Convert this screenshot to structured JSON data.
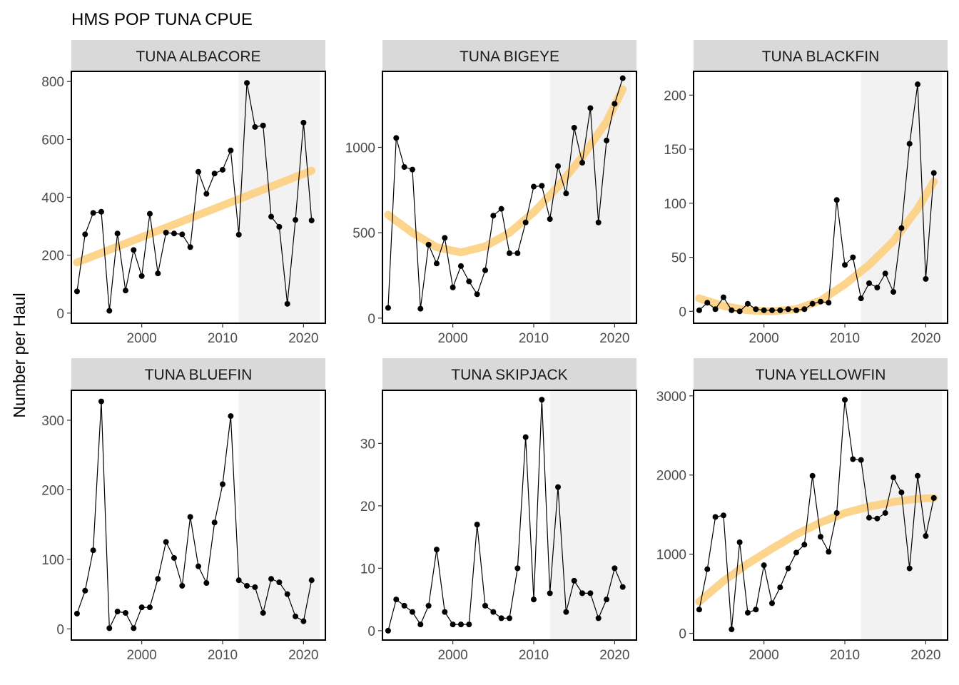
{
  "title": "HMS POP TUNA CPUE",
  "ylabel": "Number per Haul",
  "chart_data": {
    "type": "line",
    "title": "HMS POP TUNA CPUE",
    "ylabel": "Number per Haul",
    "xlabel": "",
    "xlim": [
      1991.3,
      2022.7
    ],
    "x_ticks": [
      2000,
      2010,
      2020
    ],
    "x_tick_labels": [
      "2000",
      "2010",
      "2020"
    ],
    "shaded_region": [
      2012,
      2022
    ],
    "colors": {
      "line": "#000000",
      "point": "#000000",
      "trend": "#fdd081",
      "shade": "#f2f2f2",
      "strip": "#d9d9d9"
    },
    "x": [
      1992,
      1993,
      1994,
      1995,
      1996,
      1997,
      1998,
      1999,
      2000,
      2001,
      2002,
      2003,
      2004,
      2005,
      2006,
      2007,
      2008,
      2009,
      2010,
      2011,
      2012,
      2013,
      2014,
      2015,
      2016,
      2017,
      2018,
      2019,
      2020,
      2021
    ],
    "panels": [
      {
        "name": "TUNA ALBACORE",
        "ylim": [
          -35,
          835
        ],
        "y_ticks": [
          0,
          200,
          400,
          600,
          800
        ],
        "y_tick_labels": [
          "0",
          "200",
          "400",
          "600",
          "800"
        ],
        "values": [
          75,
          272,
          346,
          350,
          8,
          275,
          78,
          218,
          128,
          343,
          137,
          278,
          275,
          272,
          228,
          488,
          412,
          482,
          495,
          562,
          271,
          795,
          643,
          648,
          333,
          298,
          32,
          322,
          658,
          320
        ],
        "trend": {
          "x": [
            1992,
            2021
          ],
          "y": [
            175,
            492
          ]
        }
      },
      {
        "name": "TUNA BIGEYE",
        "ylim": [
          -30,
          1445
        ],
        "y_ticks": [
          0,
          500,
          1000
        ],
        "y_tick_labels": [
          "0",
          "500",
          "1000"
        ],
        "values": [
          60,
          1055,
          885,
          870,
          55,
          430,
          320,
          470,
          180,
          305,
          215,
          140,
          280,
          600,
          640,
          380,
          380,
          560,
          770,
          775,
          580,
          890,
          730,
          1115,
          910,
          1230,
          560,
          1040,
          1255,
          1405
        ],
        "trend": {
          "x": [
            1992,
            1995,
            1998,
            2001,
            2004,
            2007,
            2010,
            2013,
            2016,
            2019,
            2021
          ],
          "y": [
            605,
            500,
            415,
            385,
            420,
            500,
            620,
            770,
            945,
            1150,
            1340
          ]
        }
      },
      {
        "name": "TUNA BLACKFIN",
        "ylim": [
          -11,
          222
        ],
        "y_ticks": [
          0,
          50,
          100,
          150,
          200
        ],
        "y_tick_labels": [
          "0",
          "50",
          "100",
          "150",
          "200"
        ],
        "values": [
          1,
          8,
          2,
          13,
          1,
          0,
          7,
          2,
          1,
          1,
          1,
          2,
          1,
          2,
          7,
          9,
          8,
          103,
          43,
          50,
          12,
          26,
          22,
          35,
          18,
          77,
          155,
          210,
          30,
          128
        ],
        "trend": {
          "x": [
            1992,
            1995,
            1998,
            2001,
            2004,
            2007,
            2010,
            2013,
            2016,
            2019,
            2021
          ],
          "y": [
            12,
            5,
            1,
            0,
            2,
            10,
            25,
            43,
            65,
            95,
            120
          ]
        }
      },
      {
        "name": "TUNA BLUEFIN",
        "ylim": [
          -16,
          343
        ],
        "y_ticks": [
          0,
          100,
          200,
          300
        ],
        "y_tick_labels": [
          "0",
          "100",
          "200",
          "300"
        ],
        "values": [
          22,
          55,
          113,
          327,
          1,
          25,
          23,
          1,
          31,
          31,
          72,
          125,
          102,
          62,
          161,
          90,
          66,
          153,
          208,
          306,
          70,
          62,
          60,
          23,
          72,
          67,
          50,
          18,
          11,
          70
        ]
      },
      {
        "name": "TUNA SKIPJACK",
        "ylim": [
          -1.5,
          38.5
        ],
        "y_ticks": [
          0,
          10,
          20,
          30
        ],
        "y_tick_labels": [
          "0",
          "10",
          "20",
          "30"
        ],
        "values": [
          0,
          5,
          4,
          3,
          1,
          4,
          13,
          3,
          1,
          1,
          1,
          17,
          4,
          3,
          2,
          2,
          10,
          31,
          5,
          37,
          6,
          23,
          3,
          8,
          6,
          6,
          2,
          5,
          10,
          7
        ]
      },
      {
        "name": "TUNA YELLOWFIN",
        "ylim": [
          -85,
          3070
        ],
        "y_ticks": [
          0,
          1000,
          2000,
          3000
        ],
        "y_tick_labels": [
          "0",
          "1000",
          "2000",
          "3000"
        ],
        "values": [
          300,
          810,
          1470,
          1490,
          50,
          1150,
          260,
          300,
          860,
          380,
          580,
          820,
          1020,
          1120,
          1990,
          1220,
          1030,
          1520,
          2950,
          2200,
          2190,
          1460,
          1450,
          1520,
          1970,
          1780,
          820,
          1990,
          1230,
          1710
        ],
        "trend": {
          "x": [
            1992,
            1995,
            1998,
            2001,
            2004,
            2007,
            2010,
            2013,
            2016,
            2019,
            2021
          ],
          "y": [
            400,
            660,
            880,
            1070,
            1250,
            1400,
            1520,
            1600,
            1660,
            1700,
            1710
          ]
        }
      }
    ]
  }
}
